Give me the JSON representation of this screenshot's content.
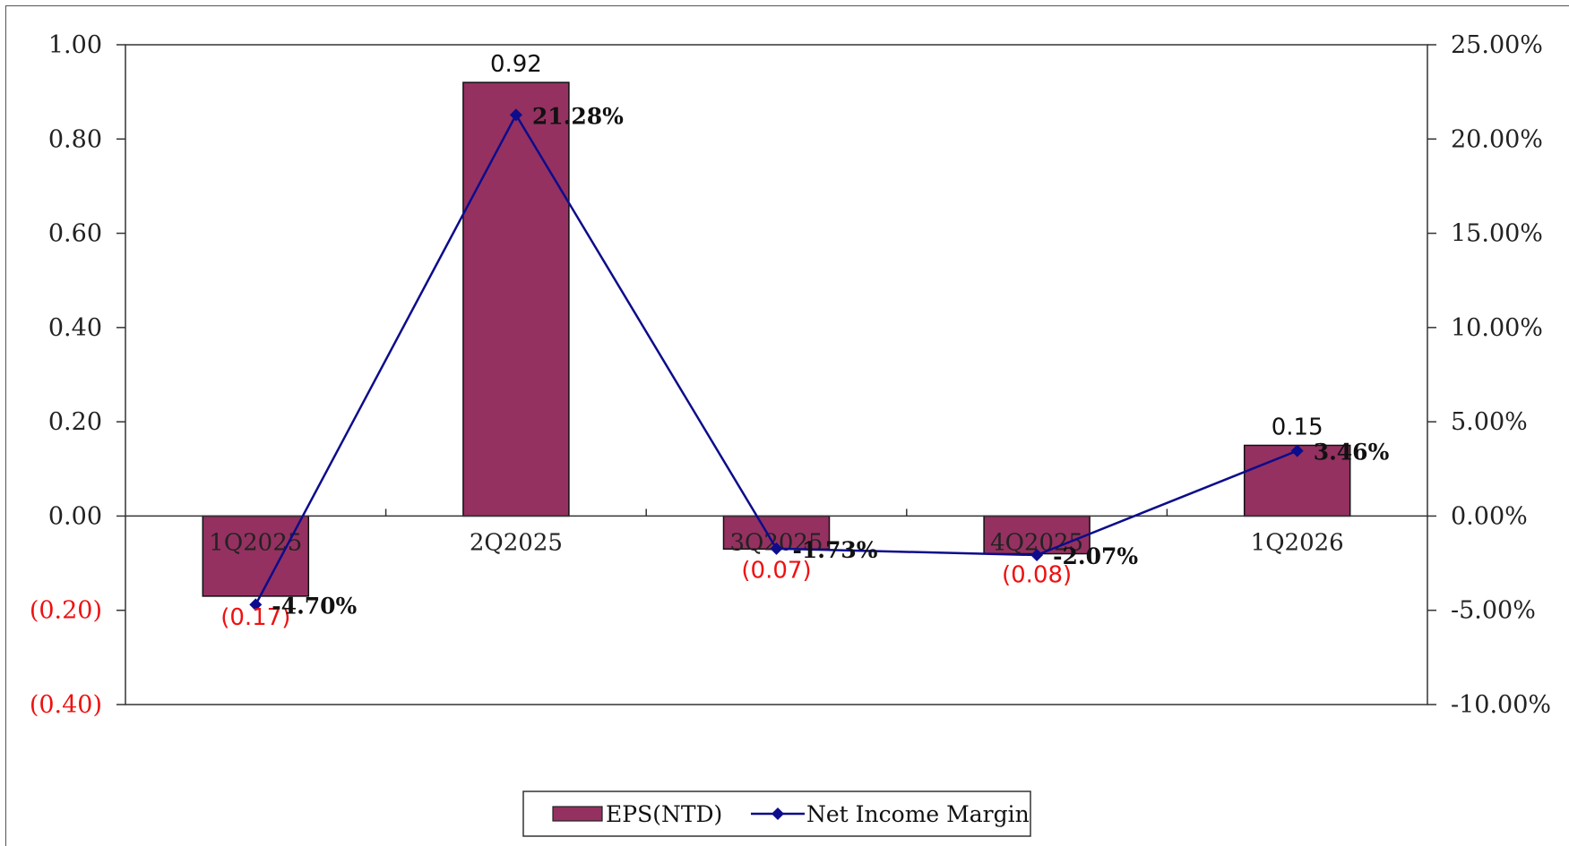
{
  "chart_data": {
    "type": "bar",
    "categories": [
      "1Q2025",
      "2Q2025",
      "3Q2025",
      "4Q2025",
      "1Q2026"
    ],
    "series": [
      {
        "name": "EPS(NTD)",
        "type": "bar",
        "axis": "left",
        "values": [
          -0.17,
          0.92,
          -0.07,
          -0.08,
          0.15
        ],
        "value_labels": [
          "(0.17)",
          "0.92",
          "(0.07)",
          "(0.08)",
          "0.15"
        ],
        "color": "#943160"
      },
      {
        "name": "Net Income Margin",
        "type": "line",
        "axis": "right",
        "values": [
          -4.7,
          21.28,
          -1.73,
          -2.07,
          3.46
        ],
        "value_labels": [
          "-4.70%",
          "21.28%",
          "-1.73%",
          "-2.07%",
          "3.46%"
        ],
        "color": "#0c0c8c"
      }
    ],
    "y_left": {
      "ylim": [
        -0.4,
        1.0
      ],
      "ticks": [
        1.0,
        0.8,
        0.6,
        0.4,
        0.2,
        0.0,
        -0.2,
        -0.4
      ],
      "tick_labels": [
        "1.00",
        "0.80",
        "0.60",
        "0.40",
        "0.20",
        "0.00",
        "(0.20)",
        "(0.40)"
      ]
    },
    "y_right": {
      "ylim": [
        -10,
        25
      ],
      "ticks": [
        25,
        20,
        15,
        10,
        5,
        0,
        -5,
        -10
      ],
      "tick_labels": [
        "25.00%",
        "20.00%",
        "15.00%",
        "10.00%",
        "5.00%",
        "0.00%",
        "-5.00%",
        "-10.00%"
      ]
    },
    "negative_label_color": "#ee1111",
    "positive_label_color": "#111111",
    "grid": false,
    "legend": {
      "position": "bottom-center",
      "entries": [
        "EPS(NTD)",
        "Net Income Margin"
      ]
    }
  }
}
